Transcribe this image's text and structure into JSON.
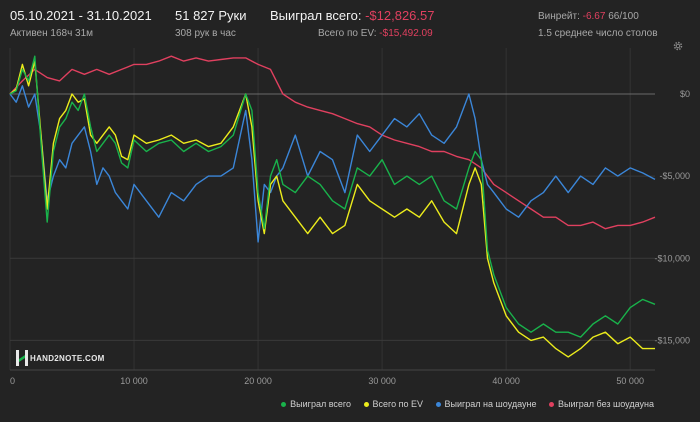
{
  "header": {
    "date_range": "05.10.2021 - 31.10.2021",
    "active": "Активен 168ч 31м",
    "hands": "51 827 Руки",
    "hands_per_hour": "308 рук в час",
    "won_total_label": "Выиграл всего:",
    "won_total_value": "-$12,826.57",
    "ev_total_label": "Всего по EV:",
    "ev_total_value": "-$15,492.09",
    "winrate_label": "Винрейт:",
    "winrate_value": "-6.67",
    "winrate_count": "66/100",
    "tables": "1.5 среднее число столов"
  },
  "logo": {
    "text": "HAND2NOTE.COM"
  },
  "legend": {
    "won": "Выиграл всего",
    "ev": "Всего по EV",
    "showdown": "Выиграл на шоудауне",
    "nonshowdown": "Выиграл без шоудауна"
  },
  "icons": {
    "settings": "gear-icon"
  },
  "colors": {
    "won": "#19b24b",
    "ev": "#ecec1c",
    "showdown": "#3b86d8",
    "nonshowdown": "#e0405f",
    "background": "#232323"
  },
  "chart_data": {
    "type": "line",
    "x_ticks": [
      0,
      10000,
      20000,
      30000,
      40000,
      50000
    ],
    "x_tick_labels": [
      "0",
      "10 000",
      "20 000",
      "30 000",
      "40 000",
      "50 000"
    ],
    "y_ticks": [
      0,
      -5000,
      -10000,
      -15000
    ],
    "y_tick_labels": [
      "$0",
      "-$5,000",
      "-$10,000",
      "-$15,000"
    ],
    "xlim": [
      0,
      52000
    ],
    "ylim": [
      -16800,
      2800
    ],
    "grid": true,
    "legend_position": "bottom-right",
    "series": [
      {
        "name": "Выиграл всего",
        "x": [
          0,
          500,
          1000,
          1500,
          2000,
          2500,
          3000,
          3500,
          4000,
          4500,
          5000,
          5500,
          6000,
          6500,
          7000,
          7500,
          8000,
          8500,
          9000,
          9500,
          10000,
          11000,
          12000,
          13000,
          14000,
          15000,
          16000,
          17000,
          18000,
          19000,
          19500,
          20000,
          20500,
          21000,
          21500,
          22000,
          23000,
          24000,
          25000,
          26000,
          27000,
          28000,
          29000,
          30000,
          31000,
          32000,
          33000,
          34000,
          35000,
          36000,
          37000,
          37500,
          38000,
          38500,
          39000,
          39500,
          40000,
          41000,
          42000,
          43000,
          44000,
          45000,
          46000,
          47000,
          48000,
          49000,
          50000,
          51000,
          52000
        ],
        "y": [
          0,
          200,
          1500,
          800,
          2300,
          -3000,
          -7800,
          -3500,
          -2000,
          -1500,
          -500,
          -1000,
          0,
          -2000,
          -3500,
          -3000,
          -2500,
          -3000,
          -4200,
          -4500,
          -2800,
          -3500,
          -3000,
          -2800,
          -3500,
          -3000,
          -3500,
          -3200,
          -2500,
          0,
          -1000,
          -6000,
          -8200,
          -5000,
          -4000,
          -5500,
          -6000,
          -5000,
          -5500,
          -6500,
          -7000,
          -4500,
          -5000,
          -4000,
          -5500,
          -5000,
          -5500,
          -5000,
          -6500,
          -7000,
          -4500,
          -3500,
          -4000,
          -9500,
          -11000,
          -12000,
          -13000,
          -14000,
          -14500,
          -14000,
          -14500,
          -14500,
          -14800,
          -14000,
          -13500,
          -14000,
          -13000,
          -12500,
          -12800
        ]
      },
      {
        "name": "Всего по EV",
        "x": [
          0,
          500,
          1000,
          1500,
          2000,
          2500,
          3000,
          3500,
          4000,
          4500,
          5000,
          5500,
          6000,
          6500,
          7000,
          7500,
          8000,
          8500,
          9000,
          9500,
          10000,
          11000,
          12000,
          13000,
          14000,
          15000,
          16000,
          17000,
          18000,
          19000,
          19500,
          20000,
          20500,
          21000,
          21500,
          22000,
          23000,
          24000,
          25000,
          26000,
          27000,
          28000,
          29000,
          30000,
          31000,
          32000,
          33000,
          34000,
          35000,
          36000,
          37000,
          37500,
          38000,
          38500,
          39000,
          39500,
          40000,
          41000,
          42000,
          43000,
          44000,
          45000,
          46000,
          47000,
          48000,
          49000,
          50000,
          51000,
          52000
        ],
        "y": [
          0,
          300,
          1800,
          500,
          2000,
          -2500,
          -7000,
          -3000,
          -1500,
          -1000,
          0,
          -500,
          -300,
          -2500,
          -3000,
          -2500,
          -2000,
          -2500,
          -3800,
          -4000,
          -2500,
          -3000,
          -2800,
          -2500,
          -3000,
          -2800,
          -3200,
          -3000,
          -2000,
          0,
          -2000,
          -6500,
          -8500,
          -5500,
          -5000,
          -6500,
          -7500,
          -8500,
          -7500,
          -8500,
          -8000,
          -5500,
          -6500,
          -7000,
          -7500,
          -7000,
          -7500,
          -6500,
          -7800,
          -8500,
          -5500,
          -4500,
          -5500,
          -10000,
          -11500,
          -12500,
          -13500,
          -14500,
          -15000,
          -14800,
          -15500,
          -16000,
          -15500,
          -14800,
          -14500,
          -15200,
          -14800,
          -15500,
          -15500
        ]
      },
      {
        "name": "Выиграл на шоудауне",
        "x": [
          0,
          500,
          1000,
          1500,
          2000,
          2500,
          3000,
          3500,
          4000,
          4500,
          5000,
          5500,
          6000,
          6500,
          7000,
          7500,
          8000,
          8500,
          9000,
          9500,
          10000,
          11000,
          12000,
          13000,
          14000,
          15000,
          16000,
          17000,
          18000,
          19000,
          19500,
          20000,
          20500,
          21000,
          21500,
          22000,
          23000,
          24000,
          25000,
          26000,
          27000,
          28000,
          29000,
          30000,
          31000,
          32000,
          33000,
          34000,
          35000,
          36000,
          37000,
          37500,
          38000,
          38500,
          39000,
          39500,
          40000,
          41000,
          42000,
          43000,
          44000,
          45000,
          46000,
          47000,
          48000,
          49000,
          50000,
          51000,
          52000
        ],
        "y": [
          0,
          -500,
          500,
          -800,
          0,
          -2500,
          -6500,
          -5000,
          -4000,
          -4500,
          -3000,
          -2500,
          -2000,
          -3500,
          -5500,
          -4500,
          -5000,
          -6000,
          -6500,
          -7000,
          -5500,
          -6500,
          -7500,
          -6000,
          -6500,
          -5500,
          -5000,
          -5000,
          -4500,
          -1000,
          -4000,
          -9000,
          -5500,
          -6000,
          -5000,
          -4500,
          -2500,
          -5000,
          -3500,
          -4000,
          -6000,
          -2500,
          -3500,
          -2500,
          -1500,
          -2000,
          -1200,
          -2500,
          -3000,
          -2000,
          0,
          -1500,
          -4000,
          -5500,
          -6000,
          -6500,
          -7000,
          -7500,
          -6500,
          -6000,
          -5000,
          -6000,
          -5000,
          -5500,
          -4500,
          -5000,
          -4500,
          -4800,
          -5200
        ]
      },
      {
        "name": "Выиграл без шоудауна",
        "x": [
          0,
          1000,
          2000,
          3000,
          4000,
          5000,
          6000,
          7000,
          8000,
          9000,
          10000,
          11000,
          12000,
          13000,
          14000,
          15000,
          16000,
          17000,
          18000,
          19000,
          20000,
          21000,
          22000,
          23000,
          24000,
          25000,
          26000,
          27000,
          28000,
          29000,
          30000,
          31000,
          32000,
          33000,
          34000,
          35000,
          36000,
          37000,
          38000,
          39000,
          40000,
          41000,
          42000,
          43000,
          44000,
          45000,
          46000,
          47000,
          48000,
          49000,
          50000,
          51000,
          52000
        ],
        "y": [
          0,
          800,
          1500,
          1000,
          800,
          1500,
          1200,
          1500,
          1200,
          1500,
          1800,
          1800,
          2000,
          2300,
          2000,
          2200,
          2000,
          2100,
          2200,
          2200,
          1800,
          1500,
          0,
          -500,
          -800,
          -1000,
          -1200,
          -1500,
          -1800,
          -2000,
          -2500,
          -2800,
          -3000,
          -3200,
          -3500,
          -3500,
          -3800,
          -4000,
          -4500,
          -5500,
          -6000,
          -6500,
          -7000,
          -7500,
          -7500,
          -8000,
          -8000,
          -7800,
          -8200,
          -8000,
          -8000,
          -7800,
          -7500
        ]
      }
    ]
  }
}
